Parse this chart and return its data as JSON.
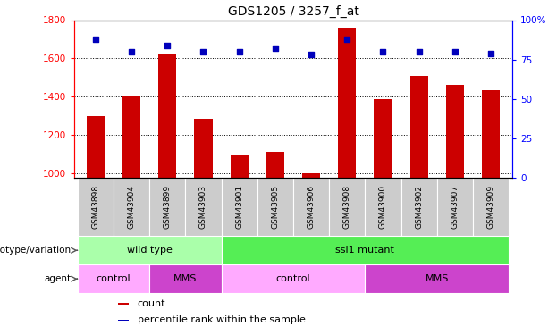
{
  "title": "GDS1205 / 3257_f_at",
  "samples": [
    "GSM43898",
    "GSM43904",
    "GSM43899",
    "GSM43903",
    "GSM43901",
    "GSM43905",
    "GSM43906",
    "GSM43908",
    "GSM43900",
    "GSM43902",
    "GSM43907",
    "GSM43909"
  ],
  "counts": [
    1300,
    1400,
    1620,
    1285,
    1100,
    1115,
    1000,
    1760,
    1390,
    1510,
    1465,
    1435
  ],
  "percentile_ranks": [
    88,
    80,
    84,
    80,
    80,
    82,
    78,
    88,
    80,
    80,
    80,
    79
  ],
  "ylim_left": [
    980,
    1800
  ],
  "ylim_right": [
    0,
    100
  ],
  "yticks_left": [
    1000,
    1200,
    1400,
    1600,
    1800
  ],
  "yticks_right": [
    0,
    25,
    50,
    75,
    100
  ],
  "bar_color": "#CC0000",
  "dot_color": "#0000BB",
  "bar_bottom": 980,
  "sample_bg_color": "#CCCCCC",
  "genotype_groups": [
    {
      "label": "wild type",
      "start": 0,
      "end": 4,
      "color": "#AAFFAA"
    },
    {
      "label": "ssl1 mutant",
      "start": 4,
      "end": 12,
      "color": "#55EE55"
    }
  ],
  "agent_groups": [
    {
      "label": "control",
      "start": 0,
      "end": 2,
      "color": "#FFAAFF"
    },
    {
      "label": "MMS",
      "start": 2,
      "end": 4,
      "color": "#CC44CC"
    },
    {
      "label": "control",
      "start": 4,
      "end": 8,
      "color": "#FFAAFF"
    },
    {
      "label": "MMS",
      "start": 8,
      "end": 12,
      "color": "#CC44CC"
    }
  ],
  "legend_items": [
    {
      "label": "count",
      "color": "#CC0000"
    },
    {
      "label": "percentile rank within the sample",
      "color": "#0000BB"
    }
  ],
  "left_labels": [
    {
      "text": "genotype/variation",
      "row": "geno"
    },
    {
      "text": "agent",
      "row": "agent"
    }
  ]
}
